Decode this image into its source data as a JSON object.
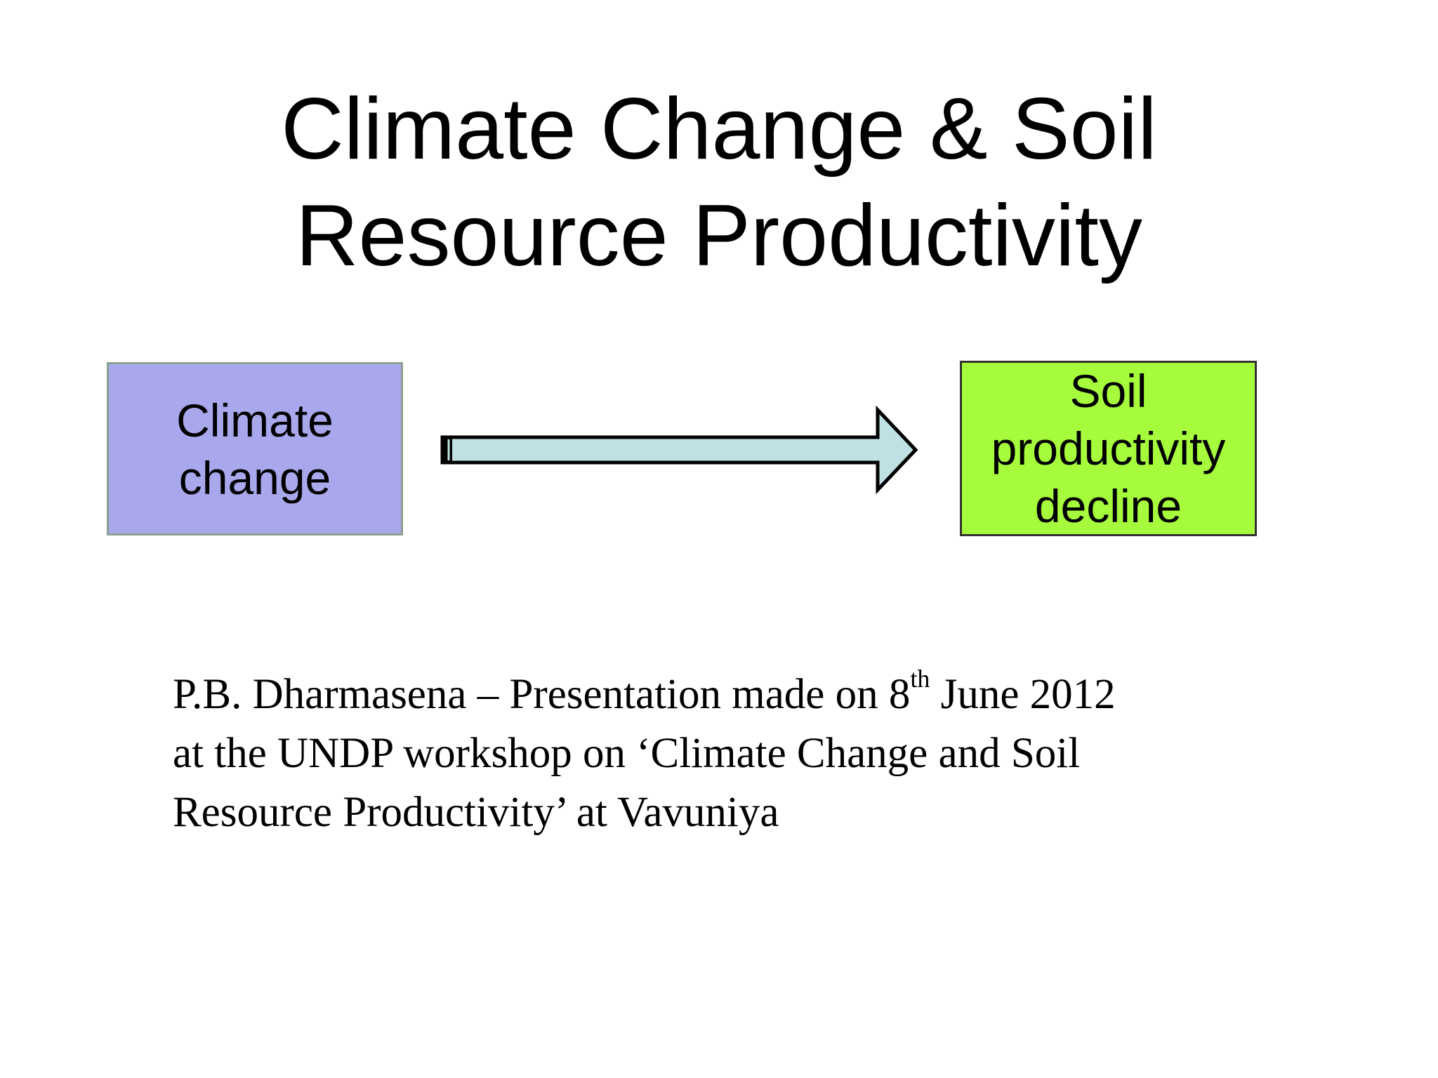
{
  "slide": {
    "title_lines": [
      "Climate Change & Soil",
      "Resource Productivity"
    ]
  },
  "diagram": {
    "source_box": {
      "lines": [
        "Climate",
        "change"
      ],
      "fill": "#a9a8ec"
    },
    "target_box": {
      "lines": [
        "Soil",
        "productivity",
        "decline"
      ],
      "fill": "#a6fb3d"
    },
    "arrow": {
      "fill": "#bfe1e3",
      "stroke": "#000000"
    }
  },
  "caption": {
    "line1_before_sup": "P.B. Dharmasena – Presentation made on 8",
    "line1_sup": "th",
    "line1_after_sup": " June 2012",
    "line2": "at the UNDP workshop on ‘Climate Change and Soil",
    "line3": "Resource Productivity’ at Vavuniya"
  }
}
